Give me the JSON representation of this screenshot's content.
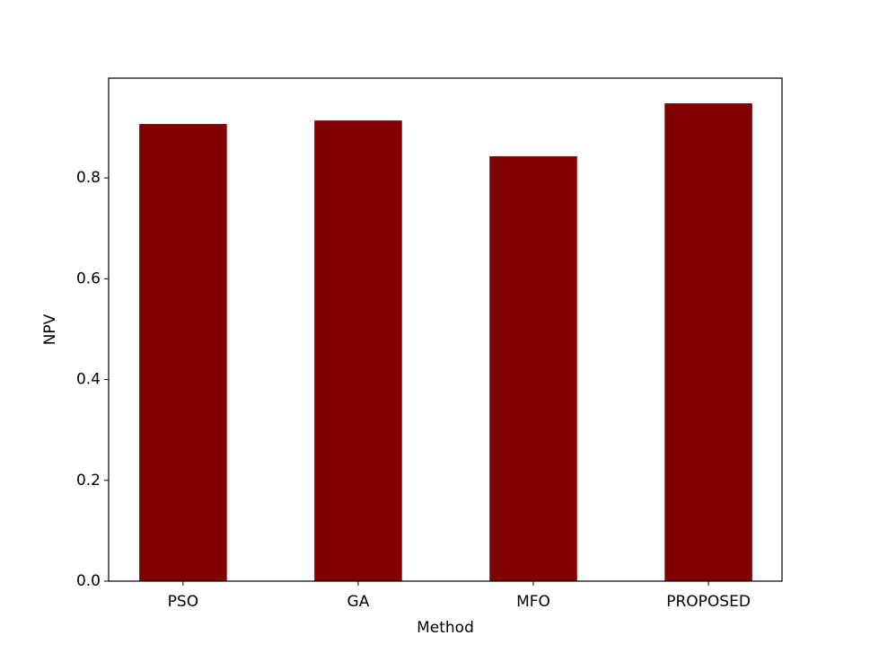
{
  "chart_data": {
    "type": "bar",
    "x_label": "Method",
    "y_label": "NPV",
    "categories": [
      "PSO",
      "GA",
      "MFO",
      "PROPOSED"
    ],
    "values": [
      0.907,
      0.914,
      0.843,
      0.948
    ],
    "color": "#800000",
    "ylim": [
      0,
      0.998
    ],
    "yticks": [
      {
        "value": 0,
        "label": "0.0"
      },
      0.2,
      0.4,
      0.6,
      0.8
    ]
  }
}
